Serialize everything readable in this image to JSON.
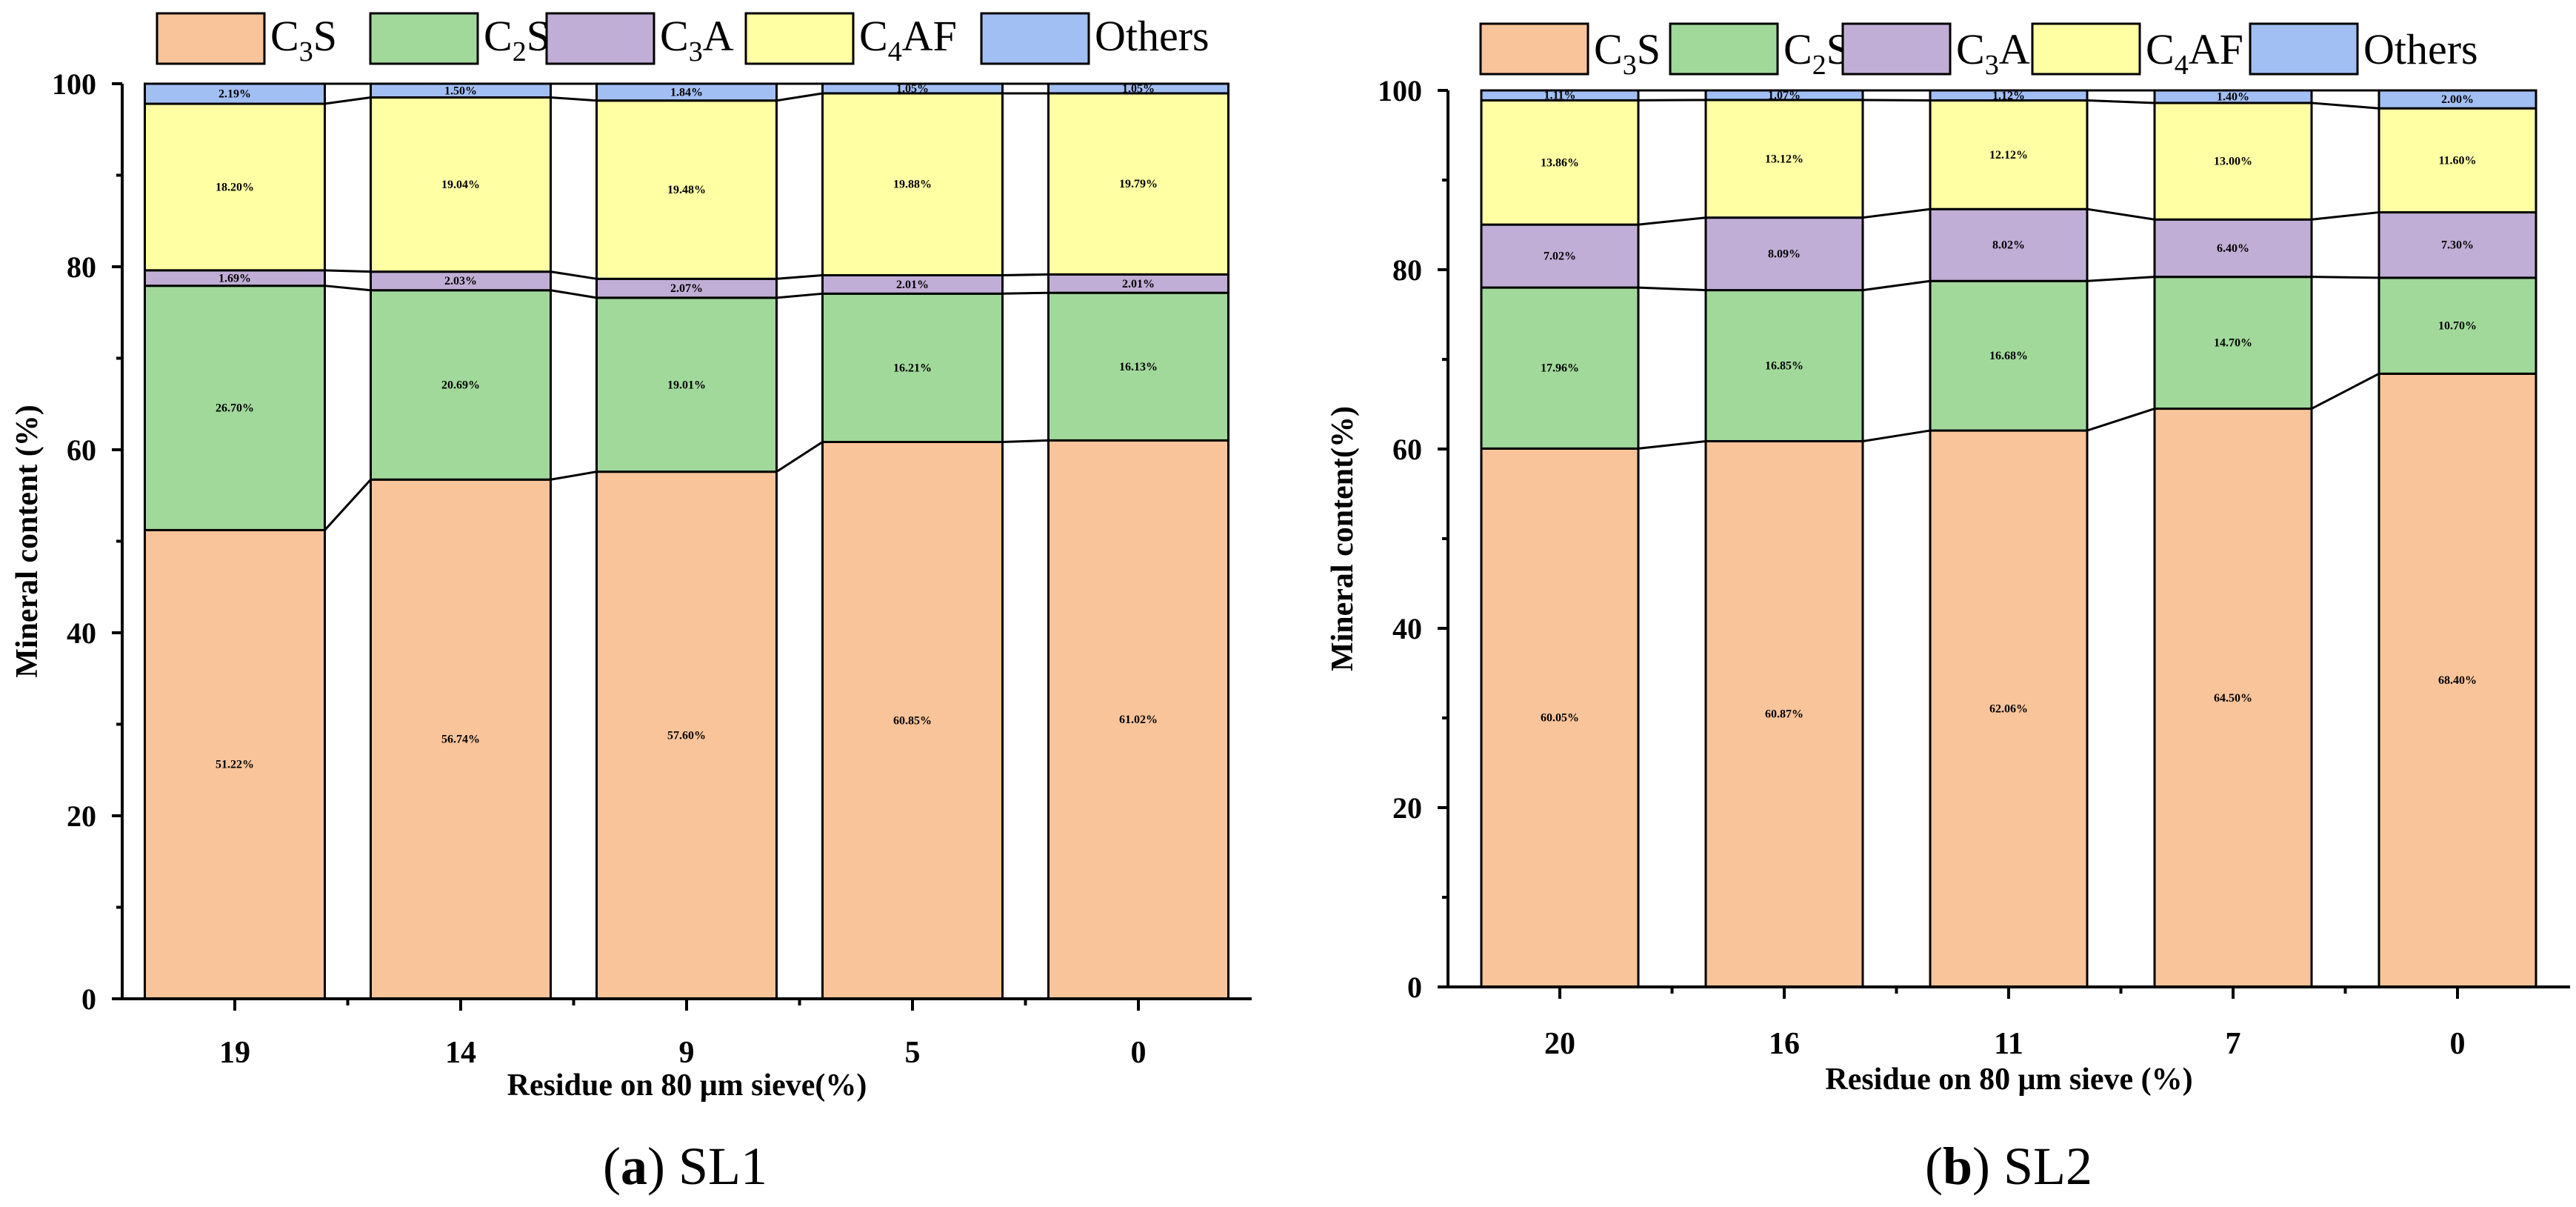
{
  "colors": {
    "C3S": "#f9c49a",
    "C2S": "#a1d99b",
    "C3A": "#c1aed6",
    "C4AF": "#ffffa4",
    "Others": "#a2bff4"
  },
  "legend": [
    {
      "key": "C3S",
      "base": "C",
      "sub": "3",
      "tail": "S"
    },
    {
      "key": "C2S",
      "base": "C",
      "sub": "2",
      "tail": "S"
    },
    {
      "key": "C3A",
      "base": "C",
      "sub": "3",
      "tail": "A"
    },
    {
      "key": "C4AF",
      "base": "C",
      "sub": "4",
      "tail": "AF"
    },
    {
      "key": "Others",
      "base": "Others",
      "sub": "",
      "tail": ""
    }
  ],
  "chart_data": [
    {
      "type": "bar",
      "stacked": true,
      "caption": {
        "letter": "a",
        "text": " SL1"
      },
      "xlabel": "Residue on 80 μm sieve(%)",
      "ylabel": "Mineral content (%)",
      "ylim": [
        0,
        100
      ],
      "yticks": [
        "0",
        "20",
        "40",
        "60",
        "80",
        "100"
      ],
      "categories": [
        "19",
        "14",
        "9",
        "5",
        "0"
      ],
      "series": [
        {
          "name": "C3S",
          "values": [
            51.22,
            56.74,
            57.6,
            60.85,
            61.02
          ],
          "labels": [
            "51.22%",
            "56.74%",
            "57.60%",
            "60.85%",
            "61.02%"
          ]
        },
        {
          "name": "C2S",
          "values": [
            26.7,
            20.69,
            19.01,
            16.21,
            16.13
          ],
          "labels": [
            "26.70%",
            "20.69%",
            "19.01%",
            "16.21%",
            "16.13%"
          ]
        },
        {
          "name": "C3A",
          "values": [
            1.69,
            2.03,
            2.07,
            2.01,
            2.01
          ],
          "labels": [
            "1.69%",
            "2.03%",
            "2.07%",
            "2.01%",
            "2.01%"
          ]
        },
        {
          "name": "C4AF",
          "values": [
            18.2,
            19.04,
            19.48,
            19.88,
            19.79
          ],
          "labels": [
            "18.20%",
            "19.04%",
            "19.48%",
            "19.88%",
            "19.79%"
          ]
        },
        {
          "name": "Others",
          "values": [
            2.19,
            1.5,
            1.84,
            1.05,
            1.05
          ],
          "labels": [
            "2.19%",
            "1.50%",
            "1.84%",
            "1.05%",
            "1.05%"
          ]
        }
      ]
    },
    {
      "type": "bar",
      "stacked": true,
      "caption": {
        "letter": "b",
        "text": " SL2"
      },
      "xlabel": "Residue on 80 μm sieve (%)",
      "ylabel": "Mineral content(%)",
      "ylim": [
        0,
        100
      ],
      "yticks": [
        "0",
        "20",
        "40",
        "60",
        "80",
        "100"
      ],
      "categories": [
        "20",
        "16",
        "11",
        "7",
        "0"
      ],
      "series": [
        {
          "name": "C3S",
          "values": [
            60.05,
            60.87,
            62.06,
            64.5,
            68.4
          ],
          "labels": [
            "60.05%",
            "60.87%",
            "62.06%",
            "64.50%",
            "68.40%"
          ]
        },
        {
          "name": "C2S",
          "values": [
            17.96,
            16.85,
            16.68,
            14.7,
            10.7
          ],
          "labels": [
            "17.96%",
            "16.85%",
            "16.68%",
            "14.70%",
            "10.70%"
          ]
        },
        {
          "name": "C3A",
          "values": [
            7.02,
            8.09,
            8.02,
            6.4,
            7.3
          ],
          "labels": [
            "7.02%",
            "8.09%",
            "8.02%",
            "6.40%",
            "7.30%"
          ]
        },
        {
          "name": "C4AF",
          "values": [
            13.86,
            13.12,
            12.12,
            13.0,
            11.6
          ],
          "labels": [
            "13.86%",
            "13.12%",
            "12.12%",
            "13.00%",
            "11.60%"
          ]
        },
        {
          "name": "Others",
          "values": [
            1.11,
            1.07,
            1.12,
            1.4,
            2.0
          ],
          "labels": [
            "1.11%",
            "1.07%",
            "1.12%",
            "1.40%",
            "2.00%"
          ]
        }
      ]
    }
  ]
}
